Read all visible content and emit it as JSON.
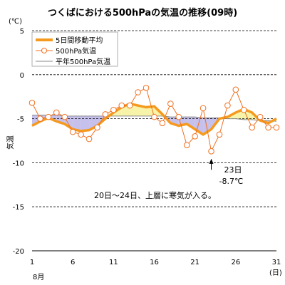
{
  "chart_data": {
    "type": "line",
    "title": "つくばにおける500hPaの気温の推移(09時)",
    "yunit": "(℃)",
    "ylabel": "気温",
    "xunit": "(日)",
    "month_label": "8月",
    "ylim": [
      -20,
      5
    ],
    "yticks": [
      5,
      0,
      -5,
      -10,
      -15,
      -20
    ],
    "xlim": [
      1,
      31
    ],
    "xticks": [
      1,
      6,
      11,
      16,
      21,
      26,
      31
    ],
    "grid": "horizontal dashed",
    "legend_position": "top-left",
    "legend": [
      "5日間移動平均",
      "500hPa気温",
      "平年500hPa気温"
    ],
    "days": [
      1,
      2,
      3,
      4,
      5,
      6,
      7,
      8,
      9,
      10,
      11,
      12,
      13,
      14,
      15,
      16,
      17,
      18,
      19,
      20,
      21,
      22,
      23,
      24,
      25,
      26,
      27,
      28,
      29,
      30,
      31
    ],
    "series": [
      {
        "name": "5日間移動平均",
        "values": [
          -5.8,
          -5.3,
          -4.9,
          -5.3,
          -5.6,
          -6.2,
          -6.4,
          -6.3,
          -5.8,
          -5.0,
          -4.3,
          -3.7,
          -3.3,
          -3.5,
          -3.7,
          -3.6,
          -4.5,
          -5.5,
          -5.8,
          -5.6,
          -6.2,
          -6.8,
          -6.2,
          -5.0,
          -4.8,
          -4.3,
          -3.9,
          -4.3,
          -5.2,
          -5.5,
          -5.0
        ]
      },
      {
        "name": "500hPa気温",
        "values": [
          -3.2,
          -5.0,
          -4.8,
          -4.3,
          -4.8,
          -6.5,
          -6.8,
          -7.3,
          -6.0,
          -4.5,
          -4.0,
          -3.5,
          -3.5,
          -2.0,
          -1.5,
          -4.8,
          -5.5,
          -3.3,
          -4.8,
          -8.0,
          -7.0,
          -3.8,
          -8.7,
          -6.8,
          -3.5,
          -1.7,
          -4.0,
          -6.0,
          -4.8,
          -6.0,
          -6.0
        ]
      },
      {
        "name": "平年500hPa気温",
        "values": [
          -4.6,
          -4.6,
          -4.6,
          -4.6,
          -4.7,
          -4.7,
          -4.7,
          -4.7,
          -4.7,
          -4.7,
          -4.7,
          -4.7,
          -4.7,
          -4.7,
          -4.7,
          -4.7,
          -4.7,
          -4.8,
          -4.8,
          -4.8,
          -4.8,
          -4.9,
          -4.9,
          -4.9,
          -5.0,
          -5.0,
          -5.1,
          -5.1,
          -5.2,
          -5.2,
          -5.3
        ]
      }
    ],
    "annotations": [
      {
        "day": 23,
        "value": -8.7,
        "line1": "23日",
        "line2": "-8.7℃"
      },
      {
        "text": "20日～24日、上層に寒気が入る。"
      }
    ],
    "colors": {
      "moving_avg": "#f59a1e",
      "observed": "#f07020",
      "normal": "#8a8a8a",
      "fill_warm": "#f7f3a8",
      "fill_cold": "#c6c0ec"
    }
  }
}
